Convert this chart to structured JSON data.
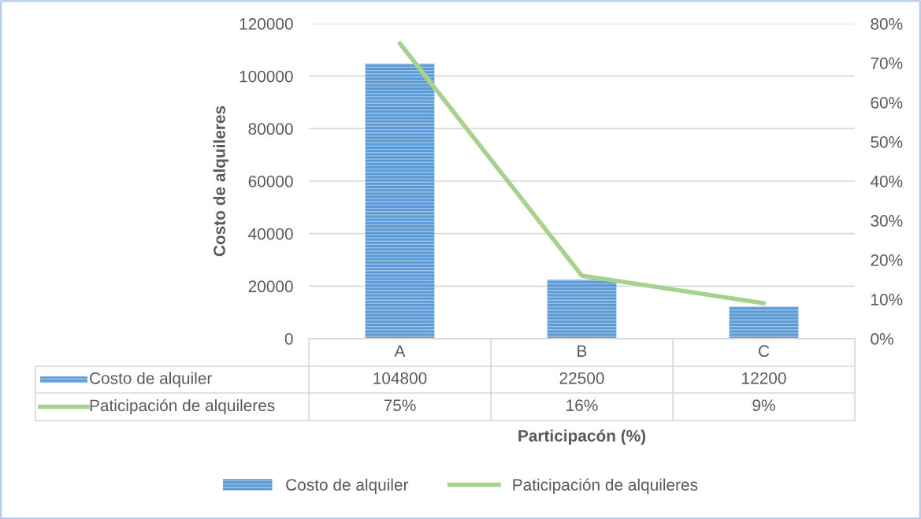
{
  "chart_data": {
    "type": "bar",
    "xlabel": "Participacón (%)",
    "ylabel": "Costo de alquileres",
    "categories": [
      "A",
      "B",
      "C"
    ],
    "series": [
      {
        "name": "Costo de alquiler",
        "color": "#5b9bd5",
        "values": [
          104800,
          22500,
          12200
        ]
      },
      {
        "name": "Paticipación de alquileres",
        "type": "line",
        "axis": "y2",
        "color": "#a9d18e",
        "values": [
          75,
          16,
          9
        ],
        "value_labels": [
          "75%",
          "16%",
          "9%"
        ]
      }
    ],
    "ylim": [
      0,
      120000
    ],
    "yticks": [
      0,
      20000,
      40000,
      60000,
      80000,
      100000,
      120000
    ],
    "y2lim": [
      0,
      80
    ],
    "y2ticks": [
      {
        "value": 0,
        "label": "0%"
      },
      {
        "value": 10,
        "label": "10%"
      },
      {
        "value": 20,
        "label": "20%"
      },
      {
        "value": 30,
        "label": "30%"
      },
      {
        "value": 40,
        "label": "40%"
      },
      {
        "value": 50,
        "label": "50%"
      },
      {
        "value": 60,
        "label": "60%"
      },
      {
        "value": 70,
        "label": "70%"
      },
      {
        "value": 80,
        "label": "80%"
      }
    ],
    "grid": "y",
    "legend": "bottom",
    "data_labels": true
  }
}
